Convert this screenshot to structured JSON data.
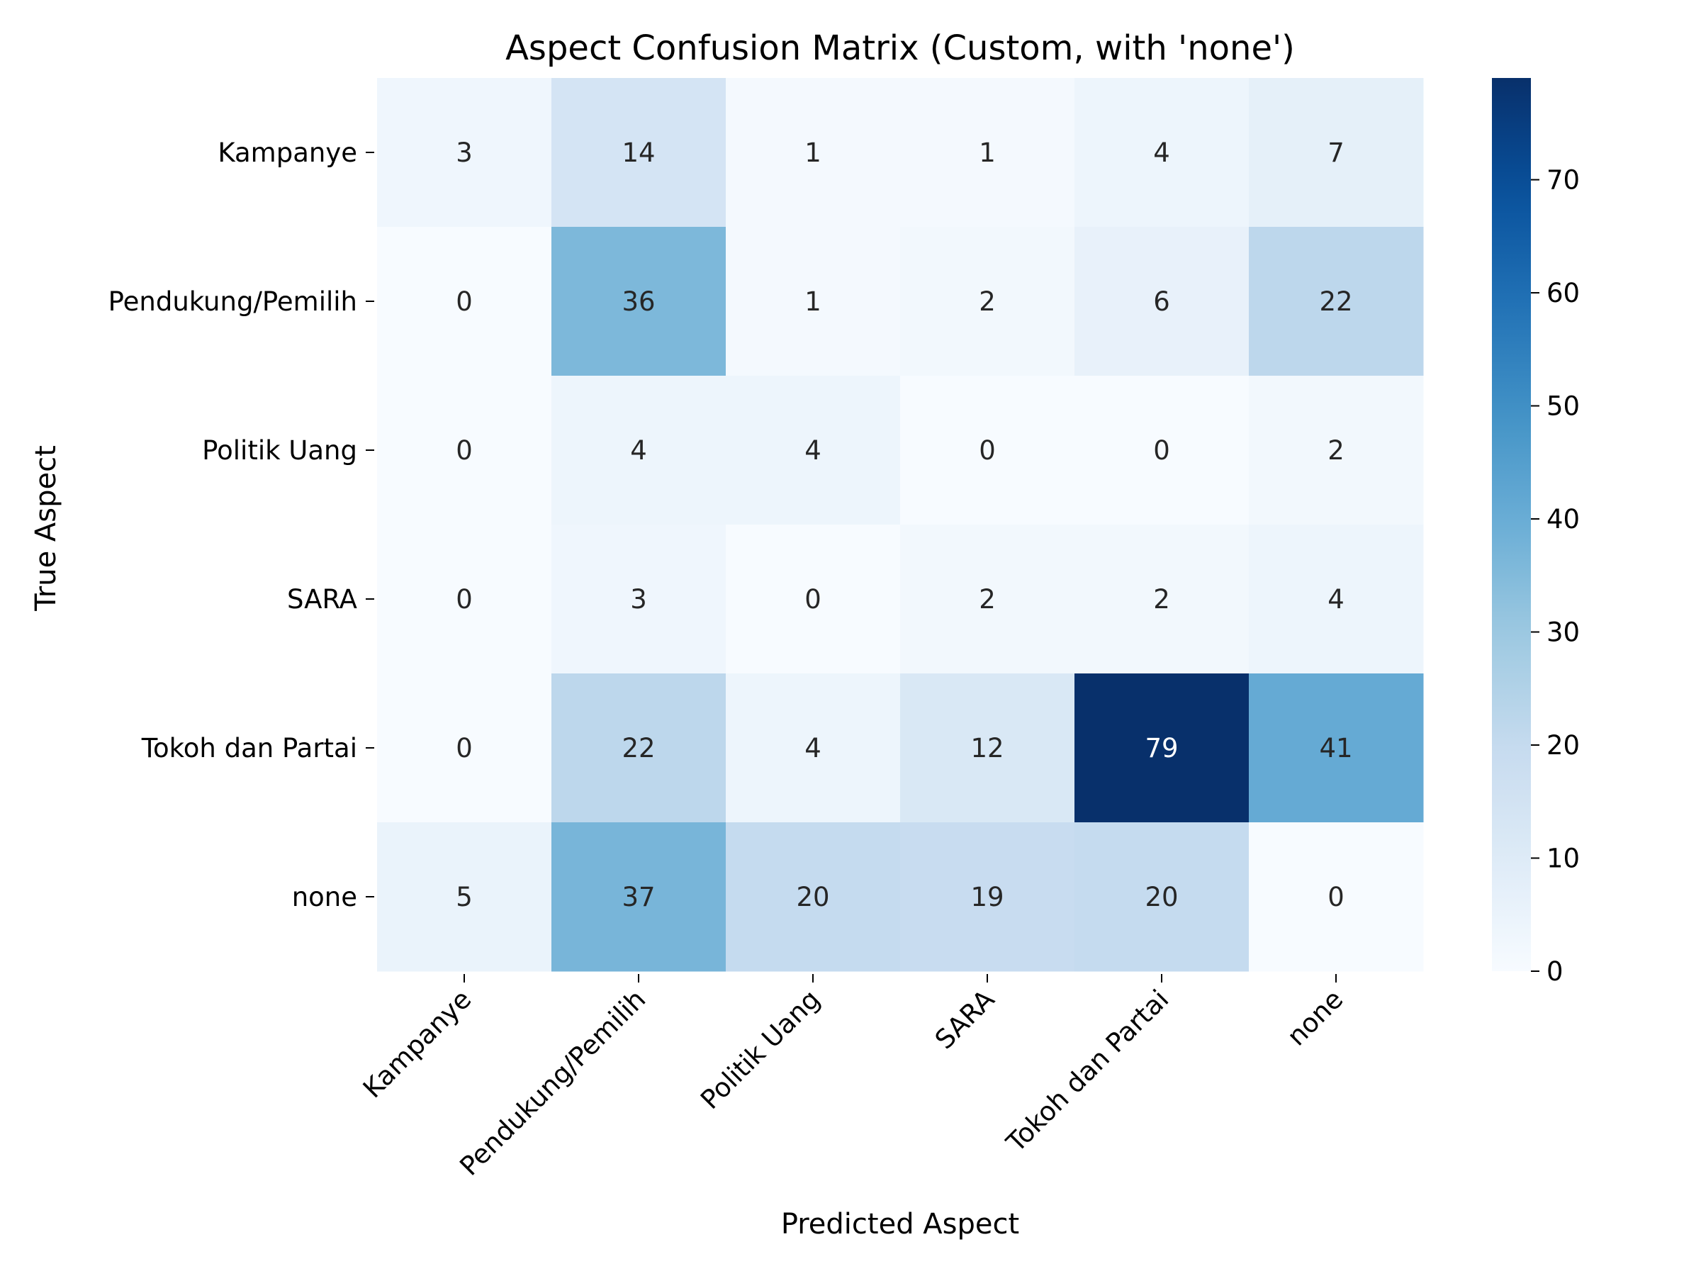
{
  "chart_data": {
    "type": "heatmap",
    "title": "Aspect Confusion Matrix (Custom, with 'none')",
    "xlabel": "Predicted Aspect",
    "ylabel": "True Aspect",
    "x_categories": [
      "Kampanye",
      "Pendukung/Pemilih",
      "Politik Uang",
      "SARA",
      "Tokoh dan Partai",
      "none"
    ],
    "y_categories": [
      "Kampanye",
      "Pendukung/Pemilih",
      "Politik Uang",
      "SARA",
      "Tokoh dan Partai",
      "none"
    ],
    "values": [
      [
        3,
        14,
        1,
        1,
        4,
        7
      ],
      [
        0,
        36,
        1,
        2,
        6,
        22
      ],
      [
        0,
        4,
        4,
        0,
        0,
        2
      ],
      [
        0,
        3,
        0,
        2,
        2,
        4
      ],
      [
        0,
        22,
        4,
        12,
        79,
        41
      ],
      [
        5,
        37,
        20,
        19,
        20,
        0
      ]
    ],
    "colorscale": "Blues",
    "vmin": 0,
    "vmax": 79,
    "colorbar_ticks": [
      0,
      10,
      20,
      30,
      40,
      50,
      60,
      70
    ],
    "colors": {
      "low": "#f7fbff",
      "high": "#08306b"
    }
  }
}
